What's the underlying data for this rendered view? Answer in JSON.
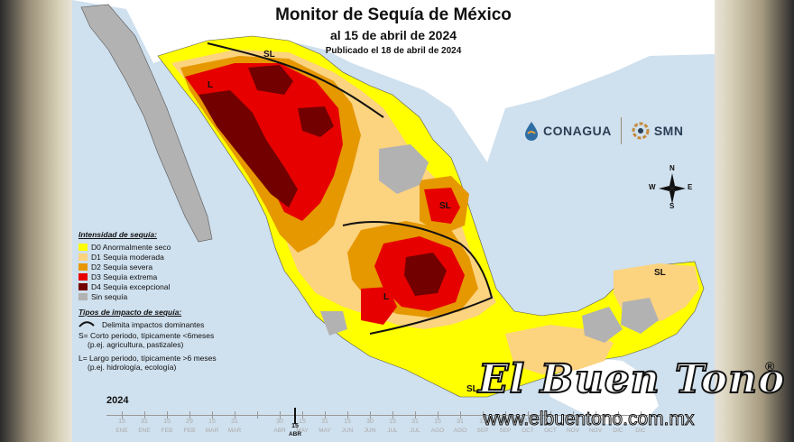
{
  "title": "Monitor de Sequía de México",
  "date_line": "al 15 de abril de 2024",
  "published_line": "Publicado el 18 de abril de 2024",
  "logos": {
    "conagua": "CONAGUA",
    "smn": "SMN"
  },
  "compass": {
    "n": "N",
    "s": "S",
    "e": "E",
    "w": "W"
  },
  "legend": {
    "title": "Intensidad de sequía:",
    "items": [
      {
        "label": "D0 Anormalmente seco",
        "color": "#ffff00"
      },
      {
        "label": "D1 Sequía moderada",
        "color": "#fcd37f"
      },
      {
        "label": "D2 Sequía severa",
        "color": "#e69800"
      },
      {
        "label": "D3 Sequía extrema",
        "color": "#e60000"
      },
      {
        "label": "D4 Sequía excepcional",
        "color": "#730000"
      },
      {
        "label": "Sin sequía",
        "color": "#b2b2b2"
      }
    ],
    "impact_title": "Tipos de impacto de sequía:",
    "impact_line": "Delimita impactos dominantes",
    "impact_s_1": "S= Corto periodo, típicamente <6meses",
    "impact_s_2": "(p.ej. agricultura, pastizales)",
    "impact_l_1": "L= Largo periodo, típicamente >6 meses",
    "impact_l_2": "(p.ej. hidrología, ecología)"
  },
  "map_labels": {
    "sl_north": "SL",
    "l_northwest": "L",
    "sl_northeast": "SL",
    "l_central": "L",
    "sl_yucatan": "SL",
    "sl_south": "SL"
  },
  "timeline": {
    "year": "2024",
    "day_labels": [
      "15",
      "31",
      "15",
      "29",
      "15",
      "31",
      "15",
      "30",
      "15",
      "31",
      "15",
      "30",
      "15",
      "31",
      "15",
      "31",
      "15",
      "30",
      "15",
      "31",
      "15",
      "30",
      "15",
      "31"
    ],
    "month_labels": [
      "ENE",
      "ENE",
      "FEB",
      "FEB",
      "MAR",
      "MAR",
      "ABR",
      "ABR",
      "MAY",
      "MAY",
      "JUN",
      "JUN",
      "JUL",
      "JUL",
      "AGO",
      "AGO",
      "SEP",
      "SEP",
      "OCT",
      "OCT",
      "NOV",
      "NOV",
      "DIC",
      "DIC"
    ],
    "current_day": "15",
    "current_month": "ABR"
  },
  "watermark": {
    "brand": "El Buen Tono",
    "registered": "®",
    "url": "www.elbuentono.com.mx"
  },
  "colors": {
    "ocean": "#cfe0ee",
    "land_foreign": "#ffffff",
    "none": "#b2b2b2"
  }
}
